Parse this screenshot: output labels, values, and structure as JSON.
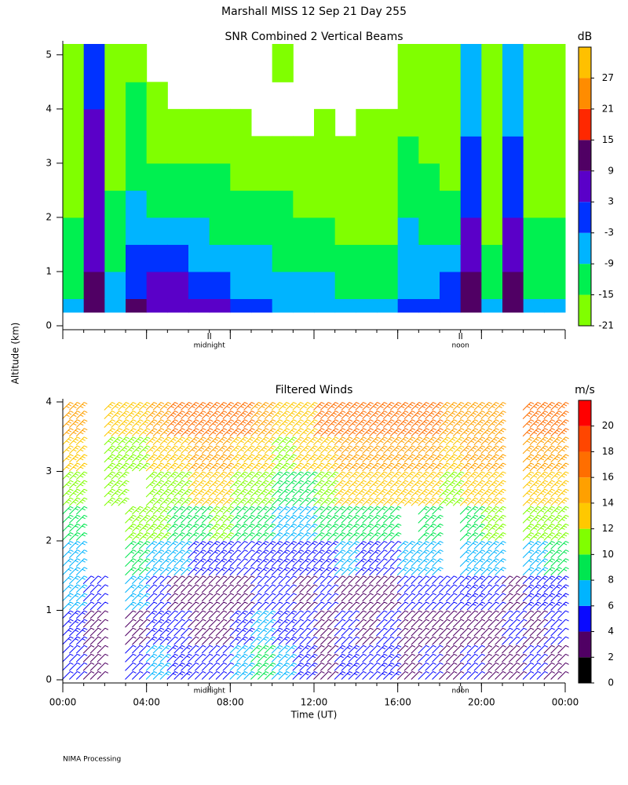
{
  "title": "Marshall MISS   12 Sep 21 Day 255",
  "y_label": "Altitude (km)",
  "footer": "NIMA Processing",
  "chart_data": [
    {
      "type": "heatmap",
      "title": "SNR Combined 2 Vertical Beams",
      "x_bins": [
        0,
        1,
        2,
        3,
        4,
        5,
        6,
        7,
        8,
        9,
        10,
        11,
        12,
        13,
        14,
        15,
        16,
        17,
        18,
        19,
        20,
        21,
        22,
        23,
        24
      ],
      "y_bins": [
        0.25,
        0.5,
        1,
        1.5,
        2,
        2.5,
        3,
        3.5,
        4,
        4.5,
        5.2
      ],
      "values": [
        [
          -6,
          -10,
          -12,
          -14,
          -16,
          -17,
          -18,
          -18,
          -19,
          -19
        ],
        [
          12,
          10,
          8,
          6,
          5,
          4,
          3,
          3,
          2,
          2
        ],
        [
          -4,
          -8,
          -12,
          -13,
          -15,
          -16,
          -17,
          -18,
          -18,
          -19
        ],
        [
          10,
          2,
          0,
          -4,
          -8,
          -10,
          -12,
          -14,
          -15,
          -16
        ],
        [
          8,
          4,
          -2,
          -8,
          -12,
          -14,
          -16,
          -17,
          -19,
          null
        ],
        [
          8,
          4,
          -2,
          -8,
          -12,
          -14,
          -16,
          -18,
          null,
          null
        ],
        [
          6,
          2,
          -4,
          -8,
          -12,
          -14,
          -17,
          -18,
          null,
          null
        ],
        [
          4,
          0,
          -6,
          -10,
          -13,
          -15,
          -17,
          -19,
          null,
          null
        ],
        [
          0,
          -4,
          -6,
          -11,
          -14,
          -16,
          -18,
          -19,
          null,
          null
        ],
        [
          -2,
          -4,
          -8,
          -12,
          -15,
          -17,
          -18,
          null,
          null,
          null
        ],
        [
          -4,
          -6,
          -10,
          -13,
          -15,
          -17,
          -19,
          null,
          null,
          -19
        ],
        [
          -6,
          -8,
          -10,
          -14,
          -16,
          -18,
          -19,
          null,
          null,
          null
        ],
        [
          -8,
          -9,
          -12,
          -15,
          -17,
          -18,
          -19,
          -19,
          null,
          null
        ],
        [
          -8,
          -10,
          -13,
          -16,
          -17,
          -18,
          -19,
          null,
          null,
          null
        ],
        [
          -8,
          -10,
          -13,
          -16,
          -17,
          -18,
          -19,
          -19,
          null,
          null
        ],
        [
          -7,
          -10,
          -13,
          -16,
          -17,
          -18,
          -19,
          -19,
          null,
          null
        ],
        [
          -2,
          -4,
          -6,
          -8,
          -10,
          -12,
          -14,
          -16,
          -17,
          -18
        ],
        [
          0,
          -4,
          -9,
          -12,
          -14,
          -15,
          -17,
          -18,
          -19,
          -19
        ],
        [
          2,
          -2,
          -8,
          -12,
          -14,
          -16,
          -17,
          -18,
          -19,
          -19
        ],
        [
          14,
          10,
          6,
          4,
          2,
          0,
          -2,
          -4,
          -6,
          -6
        ],
        [
          -6,
          -10,
          -14,
          -16,
          -17,
          -18,
          -19,
          -19,
          -19,
          -20
        ],
        [
          14,
          10,
          6,
          4,
          2,
          0,
          -2,
          -4,
          -6,
          -6
        ],
        [
          -4,
          -10,
          -13,
          -15,
          -16,
          -17,
          -18,
          -18,
          -19,
          -19
        ],
        [
          -6,
          -10,
          -13,
          -15,
          -16,
          -17,
          -18,
          -18,
          -19,
          -19
        ]
      ],
      "xlim": [
        0,
        24
      ],
      "xticks": [
        0,
        4,
        8,
        12,
        16,
        20,
        24
      ],
      "ylim": [
        0,
        5.2
      ],
      "yticks": [
        0,
        1,
        2,
        3,
        4,
        5
      ],
      "annotations": [
        {
          "x": 7,
          "text": "midnight"
        },
        {
          "x": 19,
          "text": "noon"
        }
      ],
      "colorbar": {
        "label": "dB",
        "lim": [
          -21,
          33
        ],
        "ticks": [
          -21,
          -15,
          -9,
          -3,
          3,
          9,
          15,
          21,
          27
        ],
        "colors": [
          "#80ff00",
          "#00f050",
          "#00b4ff",
          "#0032ff",
          "#5a00c8",
          "#500064",
          "#ff2800",
          "#ff8c00",
          "#ffc000"
        ]
      }
    },
    {
      "type": "barbs",
      "title": "Filtered Winds",
      "x_label": "Time (UT)",
      "x": [
        0.5,
        1.5,
        2.5,
        3.5,
        4.5,
        5.5,
        6.5,
        7.5,
        8.5,
        9.5,
        10.5,
        11.5,
        12.5,
        13.5,
        14.5,
        15.5,
        16.5,
        17.5,
        18.5,
        19.5,
        20.5,
        21.5,
        22.5,
        23.5
      ],
      "y": [
        0.25,
        0.75,
        1.25,
        1.75,
        2.25,
        2.75,
        3.25,
        3.75
      ],
      "values": [
        [
          4,
          5,
          6,
          7,
          9,
          11,
          13,
          14
        ],
        [
          3,
          3,
          4,
          null,
          null,
          null,
          null,
          null
        ],
        [
          null,
          null,
          null,
          null,
          null,
          10,
          11,
          12
        ],
        [
          4,
          3,
          6,
          8,
          11,
          null,
          10,
          12
        ],
        [
          6,
          5,
          4,
          7,
          10,
          11,
          12,
          14
        ],
        [
          5,
          4,
          3,
          6,
          9,
          11,
          13,
          16
        ],
        [
          4,
          3,
          3,
          5,
          9,
          12,
          14,
          17
        ],
        [
          4,
          3,
          3,
          5,
          10,
          12,
          14,
          16
        ],
        [
          6,
          5,
          3,
          4,
          9,
          11,
          13,
          16
        ],
        [
          8,
          6,
          4,
          5,
          8,
          10,
          12,
          14
        ],
        [
          6,
          5,
          4,
          5,
          7,
          9,
          11,
          12
        ],
        [
          5,
          4,
          3,
          5,
          7,
          9,
          12,
          13
        ],
        [
          3,
          3,
          4,
          5,
          9,
          11,
          13,
          16
        ],
        [
          5,
          4,
          3,
          6,
          9,
          12,
          14,
          17
        ],
        [
          4,
          3,
          3,
          5,
          9,
          12,
          14,
          16
        ],
        [
          5,
          4,
          3,
          4,
          8,
          12,
          14,
          16
        ],
        [
          3,
          3,
          4,
          7,
          null,
          12,
          14,
          16
        ],
        [
          4,
          3,
          4,
          6,
          9,
          12,
          14,
          16
        ],
        [
          3,
          3,
          4,
          null,
          null,
          11,
          13,
          15
        ],
        [
          4,
          3,
          5,
          6,
          9,
          12,
          14,
          15
        ],
        [
          3,
          3,
          4,
          6,
          10,
          12,
          14,
          15
        ],
        [
          3,
          4,
          3,
          null,
          null,
          null,
          null,
          null
        ],
        [
          4,
          3,
          5,
          7,
          10,
          12,
          14,
          17
        ],
        [
          3,
          4,
          5,
          8,
          11,
          13,
          15,
          16
        ]
      ],
      "xlim": [
        0,
        24
      ],
      "xticks": [
        {
          "value": 0,
          "label": "00:00"
        },
        {
          "value": 4,
          "label": "04:00"
        },
        {
          "value": 8,
          "label": "08:00"
        },
        {
          "value": 12,
          "label": "12:00"
        },
        {
          "value": 16,
          "label": "16:00"
        },
        {
          "value": 20,
          "label": "20:00"
        },
        {
          "value": 24,
          "label": "00:00"
        }
      ],
      "ylim": [
        0,
        4
      ],
      "yticks": [
        0,
        1,
        2,
        3,
        4
      ],
      "annotations": [
        {
          "x": 7,
          "text": "midnight"
        },
        {
          "x": 19,
          "text": "noon"
        }
      ],
      "colorbar": {
        "label": "m/s",
        "lim": [
          0,
          22
        ],
        "ticks": [
          0,
          2,
          4,
          6,
          8,
          10,
          12,
          14,
          16,
          18,
          20
        ],
        "colors": [
          "#000000",
          "#500064",
          "#0a0aff",
          "#00b4ff",
          "#00e650",
          "#80ff00",
          "#ffc800",
          "#ffa000",
          "#ff6e00",
          "#ff4600",
          "#ff0000"
        ]
      }
    }
  ]
}
